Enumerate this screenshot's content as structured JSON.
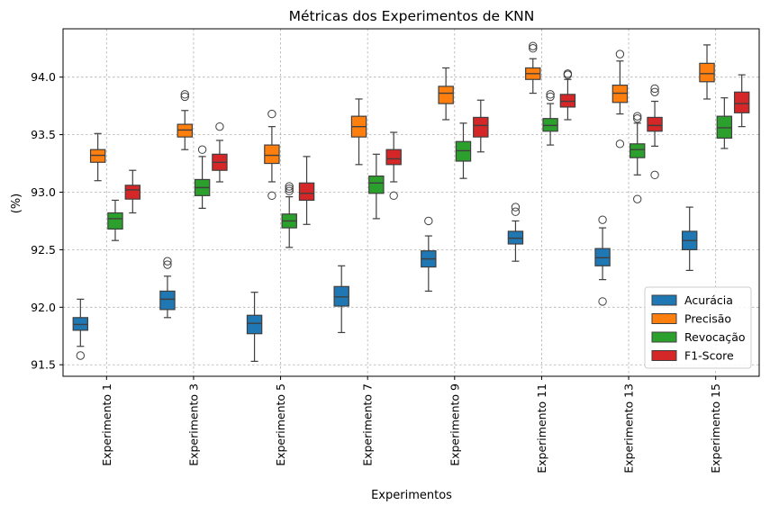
{
  "chart_data": {
    "type": "box",
    "title": "Métricas dos Experimentos de KNN",
    "xlabel": "Experimentos",
    "ylabel": "(%)",
    "ylim": [
      91.4,
      94.42
    ],
    "yticks": [
      "91.5",
      "92.0",
      "92.5",
      "93.0",
      "93.5",
      "94.0"
    ],
    "grid": true,
    "legend_position": "lower-right",
    "categories": [
      "Experimento 1",
      "Experimento 3",
      "Experimento 5",
      "Experimento 7",
      "Experimento 9",
      "Experimento 11",
      "Experimento 13",
      "Experimento 15"
    ],
    "series": [
      {
        "name": "Acurácia",
        "color": "#1f77b4",
        "boxes": [
          {
            "min": 91.66,
            "q1": 91.8,
            "median": 91.85,
            "q3": 91.91,
            "max": 92.07,
            "outliers": [
              91.58
            ]
          },
          {
            "min": 91.91,
            "q1": 91.98,
            "median": 92.07,
            "q3": 92.14,
            "max": 92.27,
            "outliers": [
              92.37,
              92.4
            ]
          },
          {
            "min": 91.53,
            "q1": 91.77,
            "median": 91.86,
            "q3": 91.93,
            "max": 92.13,
            "outliers": []
          },
          {
            "min": 91.78,
            "q1": 92.01,
            "median": 92.09,
            "q3": 92.18,
            "max": 92.36,
            "outliers": []
          },
          {
            "min": 92.14,
            "q1": 92.35,
            "median": 92.42,
            "q3": 92.49,
            "max": 92.62,
            "outliers": [
              92.75
            ]
          },
          {
            "min": 92.4,
            "q1": 92.55,
            "median": 92.6,
            "q3": 92.66,
            "max": 92.75,
            "outliers": [
              92.83,
              92.87
            ]
          },
          {
            "min": 92.24,
            "q1": 92.36,
            "median": 92.43,
            "q3": 92.51,
            "max": 92.69,
            "outliers": [
              92.76,
              92.05
            ]
          },
          {
            "min": 92.32,
            "q1": 92.5,
            "median": 92.58,
            "q3": 92.66,
            "max": 92.87,
            "outliers": []
          }
        ]
      },
      {
        "name": "Precisão",
        "color": "#ff7f0e",
        "boxes": [
          {
            "min": 93.1,
            "q1": 93.26,
            "median": 93.32,
            "q3": 93.37,
            "max": 93.51,
            "outliers": []
          },
          {
            "min": 93.37,
            "q1": 93.48,
            "median": 93.54,
            "q3": 93.59,
            "max": 93.71,
            "outliers": [
              93.83,
              93.85
            ]
          },
          {
            "min": 93.09,
            "q1": 93.25,
            "median": 93.32,
            "q3": 93.41,
            "max": 93.57,
            "outliers": [
              93.68,
              92.97
            ]
          },
          {
            "min": 93.24,
            "q1": 93.48,
            "median": 93.57,
            "q3": 93.66,
            "max": 93.81,
            "outliers": []
          },
          {
            "min": 93.63,
            "q1": 93.77,
            "median": 93.86,
            "q3": 93.92,
            "max": 94.08,
            "outliers": []
          },
          {
            "min": 93.86,
            "q1": 93.98,
            "median": 94.03,
            "q3": 94.08,
            "max": 94.16,
            "outliers": [
              94.25,
              94.27
            ]
          },
          {
            "min": 93.68,
            "q1": 93.78,
            "median": 93.86,
            "q3": 93.93,
            "max": 94.14,
            "outliers": [
              94.2,
              93.42
            ]
          },
          {
            "min": 93.81,
            "q1": 93.96,
            "median": 94.03,
            "q3": 94.12,
            "max": 94.28,
            "outliers": []
          }
        ]
      },
      {
        "name": "Revocação",
        "color": "#2ca02c",
        "boxes": [
          {
            "min": 92.58,
            "q1": 92.68,
            "median": 92.77,
            "q3": 92.82,
            "max": 92.93,
            "outliers": []
          },
          {
            "min": 92.86,
            "q1": 92.97,
            "median": 93.04,
            "q3": 93.11,
            "max": 93.31,
            "outliers": [
              93.37
            ]
          },
          {
            "min": 92.52,
            "q1": 92.69,
            "median": 92.75,
            "q3": 92.81,
            "max": 92.96,
            "outliers": [
              93.01,
              93.03,
              93.05
            ]
          },
          {
            "min": 92.77,
            "q1": 92.99,
            "median": 93.08,
            "q3": 93.14,
            "max": 93.33,
            "outliers": []
          },
          {
            "min": 93.12,
            "q1": 93.27,
            "median": 93.36,
            "q3": 93.44,
            "max": 93.6,
            "outliers": []
          },
          {
            "min": 93.41,
            "q1": 93.53,
            "median": 93.58,
            "q3": 93.64,
            "max": 93.77,
            "outliers": [
              93.83,
              93.85
            ]
          },
          {
            "min": 93.15,
            "q1": 93.3,
            "median": 93.37,
            "q3": 93.42,
            "max": 93.6,
            "outliers": [
              93.64,
              93.66,
              92.94
            ]
          },
          {
            "min": 93.38,
            "q1": 93.47,
            "median": 93.56,
            "q3": 93.66,
            "max": 93.82,
            "outliers": []
          }
        ]
      },
      {
        "name": "F1-Score",
        "color": "#d62728",
        "boxes": [
          {
            "min": 92.82,
            "q1": 92.94,
            "median": 93.02,
            "q3": 93.06,
            "max": 93.19,
            "outliers": []
          },
          {
            "min": 93.09,
            "q1": 93.19,
            "median": 93.26,
            "q3": 93.33,
            "max": 93.45,
            "outliers": [
              93.57
            ]
          },
          {
            "min": 92.72,
            "q1": 92.93,
            "median": 92.99,
            "q3": 93.08,
            "max": 93.31,
            "outliers": []
          },
          {
            "min": 93.09,
            "q1": 93.24,
            "median": 93.29,
            "q3": 93.37,
            "max": 93.52,
            "outliers": [
              92.97
            ]
          },
          {
            "min": 93.35,
            "q1": 93.48,
            "median": 93.58,
            "q3": 93.65,
            "max": 93.8,
            "outliers": []
          },
          {
            "min": 93.63,
            "q1": 93.74,
            "median": 93.79,
            "q3": 93.85,
            "max": 93.98,
            "outliers": [
              94.02,
              94.03
            ]
          },
          {
            "min": 93.4,
            "q1": 93.53,
            "median": 93.58,
            "q3": 93.65,
            "max": 93.79,
            "outliers": [
              93.87,
              93.9,
              93.15
            ]
          },
          {
            "min": 93.57,
            "q1": 93.69,
            "median": 93.77,
            "q3": 93.87,
            "max": 94.02,
            "outliers": []
          }
        ]
      }
    ]
  }
}
